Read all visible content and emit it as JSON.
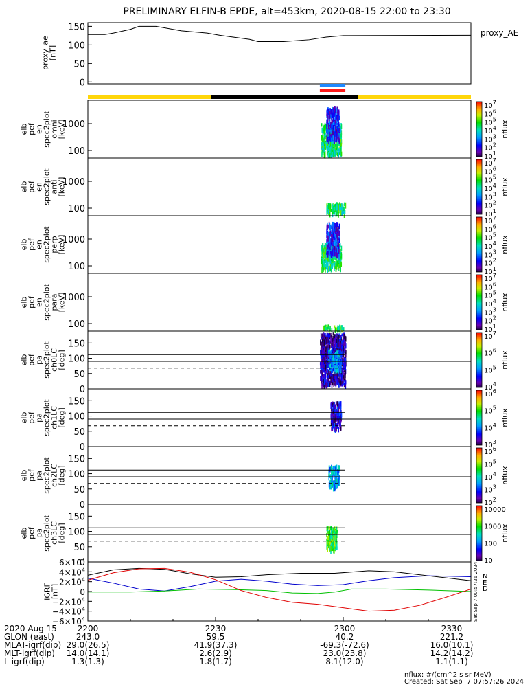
{
  "title": "PRELIMINARY ELFIN-B EPDE, alt=453km, 2020-08-15 22:00 to 23:30",
  "proxy_panel": {
    "ylabel": [
      "proxy_ae",
      "[nT]"
    ],
    "legend": "proxy_AE",
    "yticks": [
      "150",
      "100",
      "50",
      "0"
    ]
  },
  "chart_data": {
    "type": "heatmap",
    "title": "PRELIMINARY ELFIN-B EPDE, alt=453km, 2020-08-15 22:00 to 23:30",
    "x_unit": "UT (HHMM)",
    "xlim": [
      "22:00",
      "23:30"
    ],
    "proxy_ae": {
      "ylim": [
        -5,
        160
      ],
      "points": [
        [
          0,
          128
        ],
        [
          4,
          128
        ],
        [
          6,
          132
        ],
        [
          10,
          142
        ],
        [
          12,
          150
        ],
        [
          16,
          150
        ],
        [
          18,
          146
        ],
        [
          22,
          138
        ],
        [
          28,
          132
        ],
        [
          31,
          126
        ],
        [
          38,
          115
        ],
        [
          40,
          109
        ],
        [
          46,
          109
        ],
        [
          52,
          114
        ],
        [
          56,
          121
        ],
        [
          60,
          125
        ],
        [
          90,
          126
        ]
      ]
    },
    "orbit_bar": {
      "segments": [
        {
          "start": 0,
          "end": 29,
          "color": "#FFD60A"
        },
        {
          "start": 29,
          "end": 63.5,
          "color": "#000000"
        },
        {
          "start": 63.5,
          "end": 90,
          "color": "#FFD60A"
        }
      ],
      "science_zones": [
        {
          "start": 54.5,
          "end": 60.5,
          "color": "#1E88FF"
        },
        {
          "start": 54.5,
          "end": 60.5,
          "color": "#FF1A1A"
        }
      ]
    },
    "spectrograms": [
      {
        "ylabel": [
          "elb",
          "pef",
          "en",
          "spec2plot",
          "omni",
          "[keV]"
        ],
        "yticks": [
          "1000",
          "100"
        ],
        "colorbar_ticks": [
          "10^7",
          "10^6",
          "10^5",
          "10^4",
          "10^3",
          "10^2",
          "10^1"
        ],
        "zlabel": "nflux",
        "blobs": [
          {
            "t0": 54.8,
            "t1": 59.5,
            "y0": 0.06,
            "y1": 0.58,
            "peak": 0.55
          },
          {
            "t0": 56.0,
            "t1": 59.0,
            "y0": 0.3,
            "y1": 0.86,
            "peak": 0.2
          }
        ]
      },
      {
        "ylabel": [
          "elb",
          "pef",
          "en",
          "spec2plot",
          "anti",
          "[keV]"
        ],
        "yticks": [
          "1000",
          "100"
        ],
        "colorbar_ticks": [
          "10^7",
          "10^6",
          "10^5",
          "10^4",
          "10^3",
          "10^2",
          "10^1"
        ],
        "zlabel": "nflux",
        "blobs": [
          {
            "t0": 56.0,
            "t1": 60.5,
            "y0": 0.02,
            "y1": 0.2,
            "peak": 0.55
          }
        ]
      },
      {
        "ylabel": [
          "elb",
          "pef",
          "en",
          "spec2plot",
          "perp",
          "[keV]"
        ],
        "yticks": [
          "1000",
          "100"
        ],
        "colorbar_ticks": [
          "10^7",
          "10^6",
          "10^5",
          "10^4",
          "10^3",
          "10^2",
          "10^1"
        ],
        "zlabel": "nflux",
        "blobs": [
          {
            "t0": 54.8,
            "t1": 59.5,
            "y0": 0.06,
            "y1": 0.5,
            "peak": 0.55
          },
          {
            "t0": 56.0,
            "t1": 59.0,
            "y0": 0.3,
            "y1": 0.86,
            "peak": 0.2
          }
        ]
      },
      {
        "ylabel": [
          "elb",
          "pef",
          "en",
          "spec2plot",
          "para",
          "[keV]"
        ],
        "yticks": [
          "1000",
          "100"
        ],
        "colorbar_ticks": [
          "10^7",
          "10^6",
          "10^5",
          "10^4",
          "10^3",
          "10^2",
          "10^1"
        ],
        "zlabel": "nflux",
        "blobs": [
          {
            "t0": 55.0,
            "t1": 60.0,
            "y0": 0.02,
            "y1": 0.08,
            "peak": 0.6
          }
        ]
      },
      {
        "ylabel": [
          "elb",
          "pef",
          "pa",
          "spec2plot",
          "ch0LC",
          "[deg]"
        ],
        "yticks": [
          "150",
          "100",
          "50",
          "0"
        ],
        "colorbar_ticks": [
          "10^7",
          "10^6",
          "10^5",
          "10^4"
        ],
        "zlabel": "nflux",
        "blobs": [
          {
            "t0": 54.5,
            "t1": 60.5,
            "y0": 0.05,
            "y1": 0.95,
            "peak": 0.1
          },
          {
            "t0": 56.5,
            "t1": 59.5,
            "y0": 0.3,
            "y1": 0.65,
            "peak": 0.35
          }
        ]
      },
      {
        "ylabel": [
          "elb",
          "pef",
          "pa",
          "spec2plot",
          "ch1LC",
          "[deg]"
        ],
        "yticks": [
          "150",
          "100",
          "50",
          "0"
        ],
        "colorbar_ticks": [
          "10^6",
          "10^5",
          "10^4",
          "10^3"
        ],
        "zlabel": "nflux",
        "blobs": [
          {
            "t0": 57.0,
            "t1": 59.5,
            "y0": 0.3,
            "y1": 0.75,
            "peak": 0.15
          }
        ]
      },
      {
        "ylabel": [
          "elb",
          "pef",
          "pa",
          "spec2plot",
          "ch2LC",
          "[deg]"
        ],
        "yticks": [
          "150",
          "100",
          "50",
          "0"
        ],
        "colorbar_ticks": [
          "10^6",
          "10^5",
          "10^4",
          "10^3",
          "10^2"
        ],
        "zlabel": "nflux",
        "blobs": [
          {
            "t0": 56.5,
            "t1": 59.0,
            "y0": 0.28,
            "y1": 0.65,
            "peak": 0.4
          }
        ]
      },
      {
        "ylabel": [
          "elb",
          "pef",
          "pa",
          "spec2plot",
          "ch3LC",
          "[deg]"
        ],
        "yticks": [
          "150",
          "100",
          "50",
          "0"
        ],
        "colorbar_ticks": [
          "10000",
          "1000",
          "100",
          "10"
        ],
        "zlabel": "nflux",
        "blobs": [
          {
            "t0": 56.0,
            "t1": 58.5,
            "y0": 0.2,
            "y1": 0.6,
            "peak": 0.6
          }
        ]
      }
    ],
    "igrf": {
      "ylabel": [
        "IGRF",
        "[nT]"
      ],
      "yticks": [
        "6×10^4",
        "4×10^4",
        "2×10^4",
        "0",
        "−2×10^4",
        "−4×10^4",
        "−6×10^4"
      ],
      "ylim": [
        -60000,
        60000
      ],
      "legend": [
        "N",
        "E",
        "D"
      ],
      "series": [
        {
          "color": "#000000",
          "points": [
            [
              0,
              33000
            ],
            [
              6,
              44000
            ],
            [
              12,
              47000
            ],
            [
              18,
              45000
            ],
            [
              24,
              36000
            ],
            [
              30,
              29000
            ],
            [
              36,
              30000
            ],
            [
              42,
              34000
            ],
            [
              50,
              37000
            ],
            [
              58,
              37000
            ],
            [
              66,
              42000
            ],
            [
              72,
              40000
            ],
            [
              80,
              32000
            ],
            [
              90,
              22000
            ]
          ]
        },
        {
          "color": "#0000CC",
          "points": [
            [
              0,
              27000
            ],
            [
              6,
              17000
            ],
            [
              12,
              5000
            ],
            [
              18,
              1000
            ],
            [
              24,
              10000
            ],
            [
              30,
              21000
            ],
            [
              36,
              25000
            ],
            [
              42,
              21000
            ],
            [
              48,
              15000
            ],
            [
              54,
              12000
            ],
            [
              60,
              14000
            ],
            [
              66,
              22000
            ],
            [
              72,
              28000
            ],
            [
              80,
              32000
            ],
            [
              90,
              30000
            ]
          ]
        },
        {
          "color": "#00C000",
          "points": [
            [
              0,
              -1000
            ],
            [
              10,
              -1000
            ],
            [
              18,
              1000
            ],
            [
              26,
              5000
            ],
            [
              34,
              4000
            ],
            [
              42,
              2000
            ],
            [
              48,
              -3000
            ],
            [
              54,
              -4000
            ],
            [
              58,
              -1000
            ],
            [
              62,
              5000
            ],
            [
              70,
              5000
            ],
            [
              80,
              3000
            ],
            [
              90,
              0
            ]
          ]
        },
        {
          "color": "#E00000",
          "points": [
            [
              0,
              23000
            ],
            [
              6,
              38000
            ],
            [
              12,
              46000
            ],
            [
              18,
              47000
            ],
            [
              24,
              39000
            ],
            [
              30,
              24000
            ],
            [
              36,
              2000
            ],
            [
              42,
              -12000
            ],
            [
              48,
              -22000
            ],
            [
              54,
              -26000
            ],
            [
              60,
              -33000
            ],
            [
              66,
              -40000
            ],
            [
              72,
              -38000
            ],
            [
              78,
              -28000
            ],
            [
              84,
              -12000
            ],
            [
              90,
              5000
            ]
          ]
        }
      ]
    },
    "xticks": [
      "2200",
      "2230",
      "2300",
      "2330"
    ]
  },
  "footer": {
    "rows": [
      {
        "label": "2020 Aug 15",
        "values": [
          "2200",
          "2230",
          "2300",
          "2330"
        ]
      },
      {
        "label": "GLON (east)",
        "values": [
          "243.0",
          "59.5",
          "40.2",
          "221.2"
        ]
      },
      {
        "label": "MLAT-igrf(dip)",
        "values": [
          "29.0(26.5)",
          "41.9(37.3)",
          "-69.3(-72.6)",
          "16.0(10.1)"
        ]
      },
      {
        "label": "MLT-igrf(dip)",
        "values": [
          "14.0(14.1)",
          "2.6(2.9)",
          "23.0(23.8)",
          "14.2(14.2)"
        ]
      },
      {
        "label": "L-igrf(dip)",
        "values": [
          "1.3(1.3)",
          "1.8(1.7)",
          "8.1(12.0)",
          "1.1(1.1)"
        ]
      }
    ],
    "unit_note": "nflux: #/(cm^2 s sr MeV)",
    "created": "Created: Sat Sep  7 07:57:26 2024",
    "side_stamp": "Sat Sep  7 00:57:26 2024"
  }
}
